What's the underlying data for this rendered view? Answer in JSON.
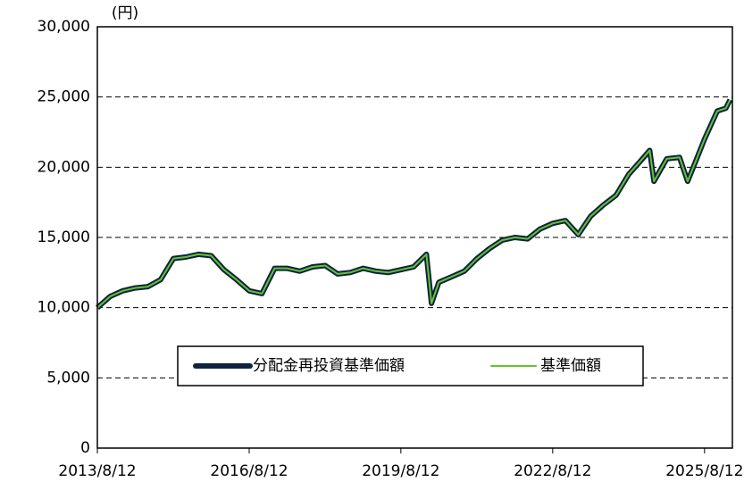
{
  "chart_data": {
    "type": "line",
    "y_unit_label": "(円)",
    "x": [
      "2013/8/12",
      "2013/11/12",
      "2014/2/12",
      "2014/5/12",
      "2014/8/12",
      "2014/11/12",
      "2015/2/12",
      "2015/5/12",
      "2015/8/12",
      "2015/11/12",
      "2016/2/12",
      "2016/5/12",
      "2016/8/12",
      "2016/11/12",
      "2017/2/12",
      "2017/5/12",
      "2017/8/12",
      "2017/11/12",
      "2018/2/12",
      "2018/5/12",
      "2018/8/12",
      "2018/11/12",
      "2019/2/12",
      "2019/5/12",
      "2019/8/12",
      "2019/11/12",
      "2020/2/12",
      "2020/3/20",
      "2020/5/12",
      "2020/8/12",
      "2020/11/12",
      "2021/2/12",
      "2021/5/12",
      "2021/8/12",
      "2021/11/12",
      "2022/2/12",
      "2022/5/12",
      "2022/8/12",
      "2022/11/12",
      "2023/2/12",
      "2023/5/12",
      "2023/8/12",
      "2023/11/12",
      "2024/2/12",
      "2024/5/12",
      "2024/7/12",
      "2024/8/12",
      "2024/11/12",
      "2025/2/12",
      "2025/4/12",
      "2025/6/12",
      "2025/8/12",
      "2025/11/12",
      "2026/1/12",
      "2026/2/12"
    ],
    "series": [
      {
        "name": "分配金再投資基準価額",
        "color": "#0d2340",
        "values": [
          10000,
          10800,
          11200,
          11400,
          11500,
          12000,
          13500,
          13600,
          13800,
          13700,
          12700,
          12000,
          11200,
          11000,
          12800,
          12800,
          12600,
          12900,
          13000,
          12400,
          12500,
          12800,
          12600,
          12500,
          12700,
          12900,
          13800,
          10300,
          11800,
          12200,
          12600,
          13500,
          14200,
          14800,
          15000,
          14900,
          15600,
          16000,
          16200,
          15200,
          16500,
          17300,
          18000,
          19500,
          20500,
          21200,
          19000,
          20600,
          20700,
          19000,
          20500,
          22000,
          24000,
          24200,
          24800
        ]
      },
      {
        "name": "基準価額",
        "color": "#66c230",
        "values": [
          10000,
          10800,
          11200,
          11400,
          11500,
          12000,
          13500,
          13600,
          13800,
          13700,
          12700,
          12000,
          11200,
          11000,
          12800,
          12800,
          12600,
          12900,
          13000,
          12400,
          12500,
          12800,
          12600,
          12500,
          12700,
          12900,
          13800,
          10300,
          11800,
          12200,
          12600,
          13500,
          14200,
          14800,
          15000,
          14900,
          15600,
          16000,
          16200,
          15200,
          16500,
          17300,
          18000,
          19500,
          20500,
          21200,
          19000,
          20600,
          20700,
          19000,
          20500,
          22000,
          24000,
          24200,
          24800
        ]
      }
    ],
    "xlim": [
      "2013/8/12",
      "2026/3/1"
    ],
    "xticks": [
      "2013/8/12",
      "2016/8/12",
      "2019/8/12",
      "2022/8/12",
      "2025/8/12"
    ],
    "ylim": [
      0,
      30000
    ],
    "yticks": [
      0,
      {
        "value": 5000,
        "label": "5,000"
      },
      {
        "value": 10000,
        "label": "10,000"
      },
      {
        "value": 15000,
        "label": "15,000"
      },
      {
        "value": 20000,
        "label": "20,000"
      },
      {
        "value": 25000,
        "label": "25,000"
      },
      {
        "value": 30000,
        "label": "30,000"
      }
    ],
    "grid": true,
    "legend": "center"
  }
}
